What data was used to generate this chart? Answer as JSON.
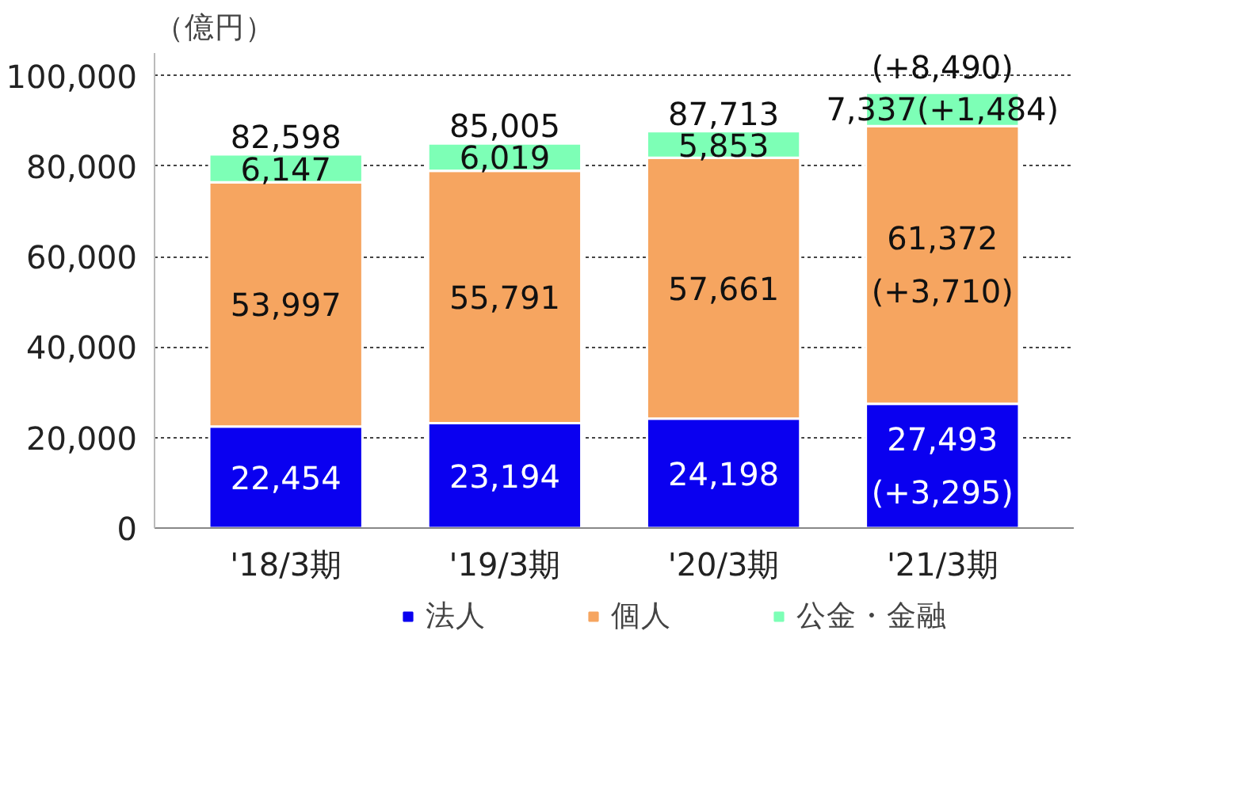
{
  "chart_data": {
    "type": "bar",
    "stacked": true,
    "ylabel": "（億円）",
    "categories": [
      "'18/3期",
      "'19/3期",
      "'20/3期",
      "'21/3期"
    ],
    "series": [
      {
        "name": "法人",
        "color": "#0a00f0",
        "values": [
          22454,
          23194,
          24198,
          27493
        ],
        "value_labels": [
          "22,454",
          "23,194",
          "24,198",
          "27,493\n(+3,295)"
        ]
      },
      {
        "name": "個人",
        "color": "#f6a560",
        "values": [
          53997,
          55791,
          57661,
          61372
        ],
        "value_labels": [
          "53,997",
          "55,791",
          "57,661",
          "61,372\n(+3,710)"
        ]
      },
      {
        "name": "公金・金融",
        "color": "#7dffb6",
        "values": [
          6147,
          6019,
          5853,
          7337
        ],
        "value_labels": [
          "6,147",
          "6,019",
          "5,853",
          "7,337(+1,484)"
        ]
      }
    ],
    "totals": [
      "82,598",
      "85,005",
      "87,713",
      "96,203\n(+8,490)"
    ],
    "ylim": [
      0,
      105000
    ],
    "yticks": [
      0,
      {
        "value": 20000,
        "label": "20,000"
      },
      {
        "value": 40000,
        "label": "40,000"
      },
      {
        "value": 60000,
        "label": "60,000"
      },
      {
        "value": 80000,
        "label": "80,000"
      },
      {
        "value": 100000,
        "label": "100,000"
      }
    ],
    "grid": "y",
    "legend": "bottom"
  }
}
